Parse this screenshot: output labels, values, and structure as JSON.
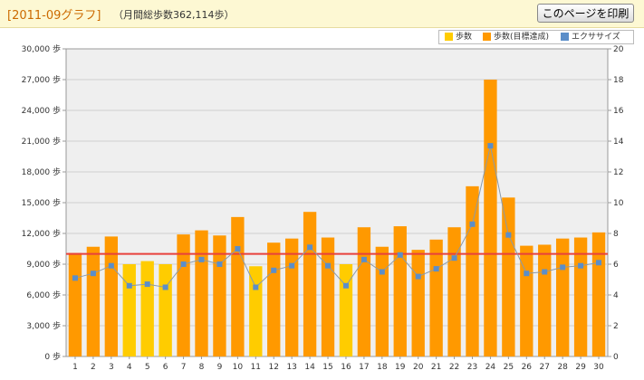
{
  "header": {
    "title": "[2011-09グラフ]",
    "subtitle": "（月間総歩数362,114歩）",
    "print_button": "このページを印刷"
  },
  "legend": {
    "items": [
      {
        "label": "歩数",
        "color": "#ffcc00"
      },
      {
        "label": "歩数(目標達成)",
        "color": "#ff9900"
      },
      {
        "label": "エクササイズ",
        "color": "#5b8ec9"
      }
    ]
  },
  "chart_data": {
    "type": "bar",
    "categories": [
      "1",
      "2",
      "3",
      "4",
      "5",
      "6",
      "7",
      "8",
      "9",
      "10",
      "11",
      "12",
      "13",
      "14",
      "15",
      "16",
      "17",
      "18",
      "19",
      "20",
      "21",
      "22",
      "23",
      "24",
      "25",
      "26",
      "27",
      "28",
      "29",
      "30"
    ],
    "series": [
      {
        "name": "歩数",
        "values": [
          10100,
          10700,
          11700,
          9000,
          9300,
          9000,
          11900,
          12300,
          11800,
          13600,
          8800,
          11100,
          11500,
          14100,
          11600,
          9000,
          12600,
          10700,
          12700,
          10400,
          11400,
          12600,
          16600,
          27000,
          15500,
          10800,
          10900,
          11500,
          11600,
          12100
        ]
      },
      {
        "name": "エクササイズ",
        "axis": "right",
        "values": [
          5.1,
          5.4,
          5.9,
          4.6,
          4.7,
          4.5,
          6.0,
          6.3,
          6.0,
          7.0,
          4.5,
          5.6,
          5.9,
          7.1,
          5.9,
          4.6,
          6.3,
          5.5,
          6.6,
          5.2,
          5.7,
          6.4,
          8.6,
          13.7,
          7.9,
          5.4,
          5.5,
          5.8,
          5.9,
          6.1
        ]
      }
    ],
    "goal_line": 10000,
    "goal_color": "#e8413c",
    "bar_color_below_goal": "#ffcc00",
    "bar_color_goal_met": "#ff9900",
    "line_color": "#5b8ec9",
    "ylim": [
      0,
      30000
    ],
    "y_ticks": [
      "0 歩",
      "3,000 歩",
      "6,000 歩",
      "9,000 歩",
      "12,000 歩",
      "15,000 歩",
      "18,000 歩",
      "21,000 歩",
      "24,000 歩",
      "27,000 歩",
      "30,000 歩"
    ],
    "y2lim": [
      0,
      20
    ],
    "y2_ticks": [
      "0",
      "2",
      "4",
      "6",
      "8",
      "10",
      "12",
      "14",
      "16",
      "18",
      "20"
    ],
    "grid": true,
    "legend_position": "top-right"
  }
}
